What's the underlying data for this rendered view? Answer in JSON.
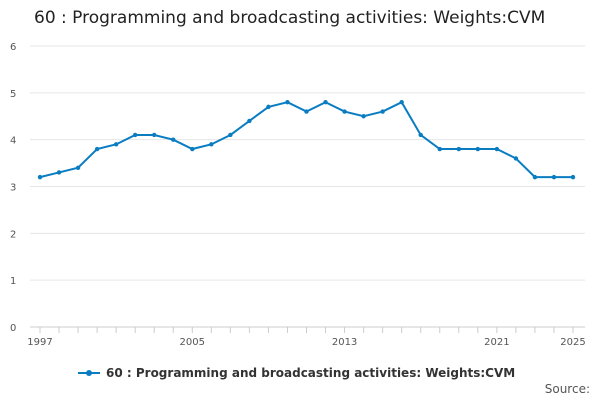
{
  "chart_data": {
    "type": "line",
    "title": "60 : Programming and broadcasting activities: Weights:CVM",
    "xlabel": "",
    "ylabel": "",
    "ylim": [
      0,
      6
    ],
    "yticks": [
      "0",
      "1",
      "2",
      "3",
      "4",
      "5",
      "6"
    ],
    "xticks": [
      "1997",
      "2005",
      "2013",
      "2021",
      "2025"
    ],
    "grid": true,
    "legend_position": "bottom",
    "color": "#0a7dc2",
    "x": [
      1997,
      1998,
      1999,
      2000,
      2001,
      2002,
      2003,
      2004,
      2005,
      2006,
      2007,
      2008,
      2009,
      2010,
      2011,
      2012,
      2013,
      2014,
      2015,
      2016,
      2017,
      2018,
      2019,
      2020,
      2021,
      2022,
      2023,
      2024,
      2025
    ],
    "series": [
      {
        "name": "60 : Programming and broadcasting activities: Weights:CVM",
        "values": [
          3.2,
          3.3,
          3.4,
          3.8,
          3.9,
          4.1,
          4.1,
          4.0,
          3.8,
          3.9,
          4.1,
          4.4,
          4.7,
          4.8,
          4.6,
          4.8,
          4.6,
          4.5,
          4.6,
          4.8,
          4.1,
          3.8,
          3.8,
          3.8,
          3.8,
          3.6,
          3.2,
          3.2,
          3.2
        ]
      }
    ]
  },
  "source_label": "Source:"
}
